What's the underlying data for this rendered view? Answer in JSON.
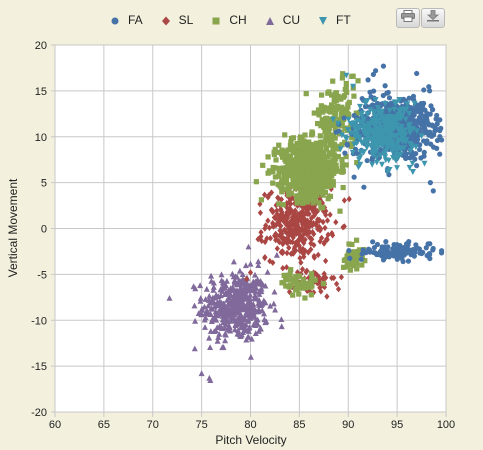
{
  "toolbar": {
    "print_icon": "printer-icon",
    "export_icon": "download-icon"
  },
  "colors": {
    "FA": "#4572a7",
    "SL": "#aa4643",
    "CH": "#89a54e",
    "CU": "#80699b",
    "FT": "#3d96ae",
    "background": "#f3f1dd",
    "plot_background": "#ffffff",
    "grid": "#c8c8c8"
  },
  "chart_data": {
    "type": "scatter",
    "xlabel": "Pitch Velocity",
    "ylabel": "Vertical Movement",
    "xlim": [
      60,
      100
    ],
    "ylim": [
      -20,
      20
    ],
    "xticks": [
      "60",
      "65",
      "70",
      "75",
      "80",
      "85",
      "90",
      "95",
      "100"
    ],
    "yticks": [
      "-20",
      "-15",
      "-10",
      "-5",
      "0",
      "5",
      "10",
      "15",
      "20"
    ],
    "grid": true,
    "legend": "top",
    "series": [
      {
        "name": "FA",
        "marker": "circle",
        "clusters": [
          {
            "cx": 94.8,
            "cy": 11.0,
            "sx": 2.4,
            "sy": 2.0,
            "n": 650
          },
          {
            "cx": 95.0,
            "cy": -2.5,
            "sx": 2.0,
            "sy": 0.55,
            "n": 140
          }
        ],
        "x": [
          91.6,
          92.8,
          97.0,
          98.4,
          98.7,
          90.6,
          93.6
        ],
        "y": [
          4.5,
          17.2,
          16.9,
          5.0,
          4.1,
          5.6,
          17.7
        ]
      },
      {
        "name": "SL",
        "marker": "diamond",
        "clusters": [
          {
            "cx": 84.8,
            "cy": 0.5,
            "sx": 2.0,
            "sy": 2.4,
            "n": 360
          },
          {
            "cx": 86.5,
            "cy": -6.0,
            "sx": 1.3,
            "sy": 1.1,
            "n": 45
          }
        ],
        "x": [
          89.3,
          89.0,
          80.0,
          79.6,
          86.5,
          90.1
        ],
        "y": [
          -5.3,
          -6.6,
          -4.8,
          -5.5,
          4.2,
          3.2
        ]
      },
      {
        "name": "CH",
        "marker": "square",
        "clusters": [
          {
            "cx": 86.0,
            "cy": 6.5,
            "sx": 1.9,
            "sy": 2.0,
            "n": 650
          },
          {
            "cx": 88.8,
            "cy": 12.0,
            "sx": 1.3,
            "sy": 2.3,
            "n": 140
          },
          {
            "cx": 85.0,
            "cy": -6.0,
            "sx": 1.2,
            "sy": 0.8,
            "n": 45
          },
          {
            "cx": 90.5,
            "cy": -3.0,
            "sx": 0.7,
            "sy": 0.9,
            "n": 40
          }
        ],
        "x": [
          90.5,
          91.0,
          85.7,
          89.8,
          81.8,
          83.5,
          80.6
        ],
        "y": [
          16.6,
          16.1,
          14.7,
          15.8,
          7.8,
          10.2,
          5.1
        ]
      },
      {
        "name": "CU",
        "marker": "triangle",
        "clusters": [
          {
            "cx": 78.5,
            "cy": -8.5,
            "sx": 2.1,
            "sy": 2.4,
            "n": 430
          }
        ],
        "x": [
          75.0,
          75.8,
          74.3,
          82.7,
          80.8,
          79.8
        ],
        "y": [
          -15.8,
          -16.3,
          -13.1,
          -2.9,
          -3.6,
          -2.0
        ]
      },
      {
        "name": "FT",
        "marker": "triangle-down",
        "clusters": [
          {
            "cx": 93.5,
            "cy": 10.5,
            "sx": 2.2,
            "sy": 1.9,
            "n": 330
          }
        ],
        "x": [
          89.8,
          90.5,
          96.6,
          97.8
        ],
        "y": [
          16.7,
          15.5,
          6.2,
          7.1
        ]
      }
    ]
  }
}
